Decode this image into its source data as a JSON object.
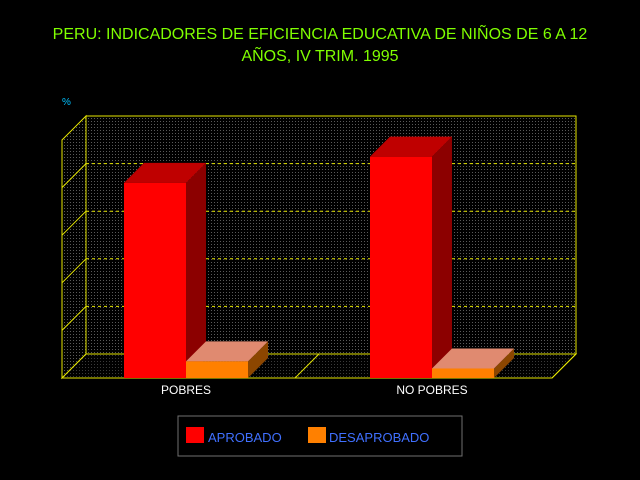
{
  "chart_data": {
    "type": "bar",
    "title_line1": "PERU: INDICADORES DE EFICIENCIA EDUCATIVA DE NIÑOS DE 6 A 12",
    "title_line2": "AÑOS, IV TRIM. 1995",
    "ylabel": "%",
    "categories": [
      "POBRES",
      "NO POBRES"
    ],
    "series": [
      {
        "name": "APROBADO",
        "values": [
          82,
          93
        ],
        "color": "#ff0000"
      },
      {
        "name": "DESAPROBADO",
        "values": [
          7,
          4
        ],
        "color": "#ff8000"
      }
    ],
    "ylim": [
      0,
      100
    ],
    "grid": true,
    "legend_position": "bottom-center",
    "colors": {
      "background": "#000000",
      "title": "#80ff00",
      "frame": "#e6e600",
      "ylabel": "#00c0ff",
      "legend_text": "#4070ff"
    }
  }
}
